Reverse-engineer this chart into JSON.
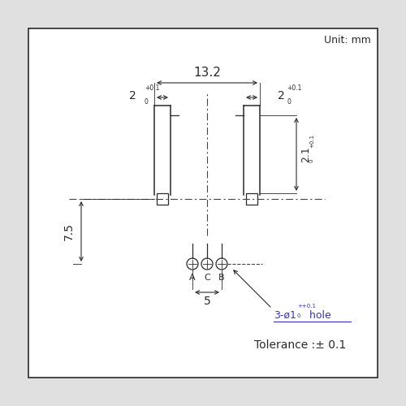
{
  "unit_label": "Unit: mm",
  "tolerance_label": "Tolerance :± 0.1",
  "hole_label": "3-ø1",
  "hole_tol_top": "+0.1",
  "hole_tol_bot": "0",
  "hole_suffix": " hole",
  "dim_132": "13.2",
  "dim_2left": "2",
  "dim_2right": "2",
  "dim_tol_top": "0.1",
  "dim_tol_bot": "0",
  "dim_21": "2.1",
  "dim_21_tol_top": "0.1",
  "dim_21_tol_bot": "0",
  "dim_75": "7.5",
  "dim_5": "5",
  "bg_color": "#e0e0e0",
  "box_color": "#ffffff",
  "line_color": "#2a2a2a",
  "dash_color": "#444444",
  "blue_text": "#3333bb"
}
